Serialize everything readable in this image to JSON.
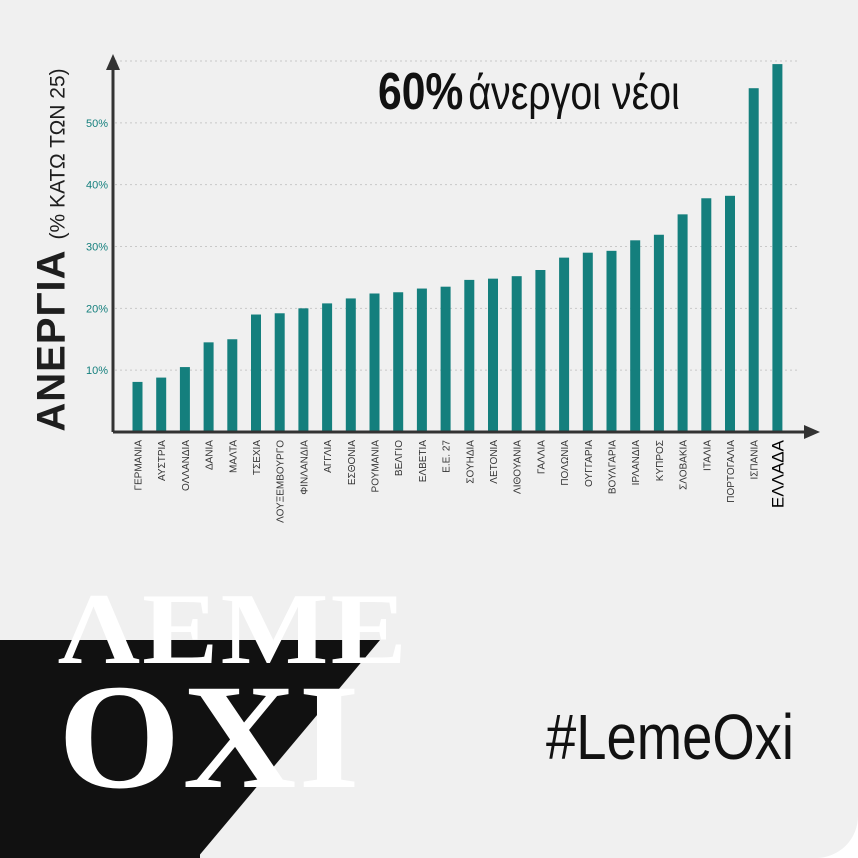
{
  "colors": {
    "bar": "#147f7d",
    "axis": "#333333",
    "tick_text": "#147f7d",
    "grid": "#c8c8c8",
    "background": "#f0f0f0"
  },
  "headline": {
    "bold": "60%",
    "rest": "άνεργοι νέοι"
  },
  "y_axis_title": {
    "main": "ΑΝΕΡΓΙΑ",
    "sub": "(% ΚΑΤΩ ΤΩΝ 25)"
  },
  "logo": {
    "line1": "ΛΕΜΕ",
    "line2": "OXI"
  },
  "hashtag": "#LemeOxi",
  "chart_data": {
    "type": "bar",
    "categories": [
      "ΓΕΡΜΑΝΙΑ",
      "ΑΥΣΤΡΙΑ",
      "ΟΛΛΑΝΔΙΑ",
      "ΔΑΝΙΑ",
      "ΜΑΛΤΑ",
      "ΤΣΕΧΙΑ",
      "ΛΟΥΞΕΜΒΟΥΡΓΟ",
      "ΦΙΝΛΑΝΔΙΑ",
      "ΑΓΓΛΙΑ",
      "ΕΣΘΟΝΙΑ",
      "ΡΟΥΜΑΝΙΑ",
      "ΒΕΛΓΙΟ",
      "ΕΛΒΕΤΙΑ",
      "Ε.Ε. 27",
      "ΣΟΥΗΔΙΑ",
      "ΛΕΤΟΝΙΑ",
      "ΛΙΘΟΥΑΝΙΑ",
      "ΓΑΛΛΙΑ",
      "ΠΟΛΩΝΙΑ",
      "ΟΥΓΓΑΡΙΑ",
      "ΒΟΥΛΓΑΡΙΑ",
      "ΙΡΛΑΝΔΙΑ",
      "ΚΥΠΡΟΣ",
      "ΣΛΟΒΑΚΙΑ",
      "ΙΤΑΛΙΑ",
      "ΠΟΡΤΟΓΑΛΙΑ",
      "ΙΣΠΑΝΙΑ",
      "ΕΛΛΑΔΑ"
    ],
    "values": [
      8.1,
      8.8,
      10.5,
      14.5,
      15.0,
      19.0,
      19.2,
      20.0,
      20.8,
      21.6,
      22.4,
      22.6,
      23.2,
      23.5,
      24.6,
      24.8,
      25.2,
      26.2,
      28.2,
      29.0,
      29.3,
      31.0,
      31.9,
      35.2,
      37.8,
      38.2,
      55.6,
      59.5
    ],
    "highlight": "ΕΛΛΑΔΑ",
    "y_ticks": [
      "10%",
      "20%",
      "30%",
      "40%",
      "50%"
    ],
    "ylim": [
      0,
      60
    ],
    "grid": true
  }
}
